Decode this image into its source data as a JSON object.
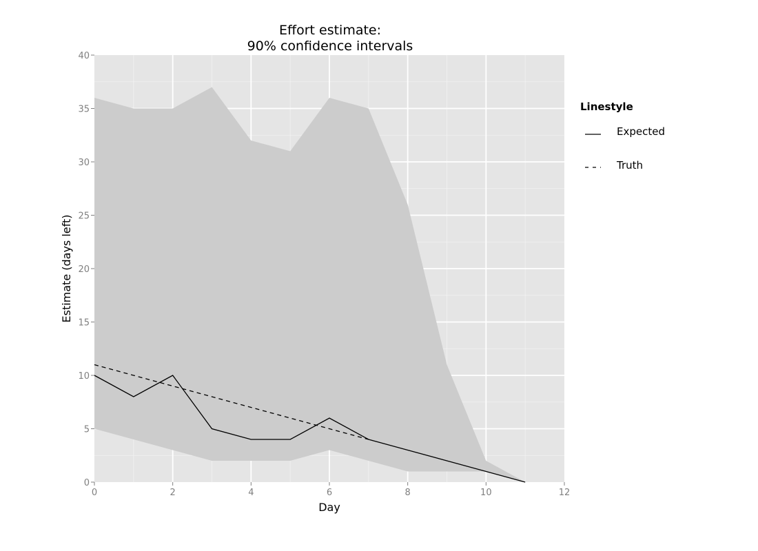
{
  "chart_data": {
    "type": "line",
    "title_lines": [
      "Effort estimate:",
      "90% confidence intervals"
    ],
    "xlabel": "Day",
    "ylabel": "Estimate (days left)",
    "xlim": [
      0,
      12
    ],
    "ylim": [
      0,
      40
    ],
    "x_ticks": [
      "0",
      "2",
      "4",
      "6",
      "8",
      "10",
      "12"
    ],
    "y_ticks": [
      "0",
      "5",
      "10",
      "15",
      "20",
      "25",
      "30",
      "35",
      "40"
    ],
    "grid": true,
    "legend": {
      "title": "Linestyle",
      "position": "right",
      "entries": [
        {
          "label": "Expected",
          "style": "solid"
        },
        {
          "label": "Truth",
          "style": "dashed"
        }
      ]
    },
    "confidence_band": {
      "name": "90% confidence interval",
      "x": [
        0,
        1,
        2,
        3,
        4,
        5,
        6,
        7,
        8,
        9,
        10,
        11
      ],
      "upper": [
        36,
        35,
        35,
        37,
        32,
        31,
        36,
        35,
        26,
        11,
        2,
        0
      ],
      "lower": [
        5,
        4,
        3,
        2,
        2,
        2,
        3,
        2,
        1,
        1,
        1,
        0
      ]
    },
    "series": [
      {
        "name": "Expected",
        "style": "solid",
        "x": [
          0,
          1,
          2,
          3,
          4,
          5,
          6,
          7,
          8,
          9,
          10,
          11
        ],
        "values": [
          10,
          8,
          10,
          5,
          4,
          4,
          6,
          4,
          3,
          2,
          1,
          0
        ]
      },
      {
        "name": "Truth",
        "style": "dashed",
        "x": [
          0,
          1,
          2,
          3,
          4,
          5,
          6,
          7
        ],
        "values": [
          11,
          10,
          9,
          8,
          7,
          6,
          5,
          4
        ]
      }
    ],
    "colors": {
      "panel": "#e5e5e5",
      "band": "#cccccc",
      "grid_major": "#ffffff",
      "grid_minor": "#f2f2f2",
      "line": "#000000",
      "tick_text": "#7f7f7f"
    }
  }
}
